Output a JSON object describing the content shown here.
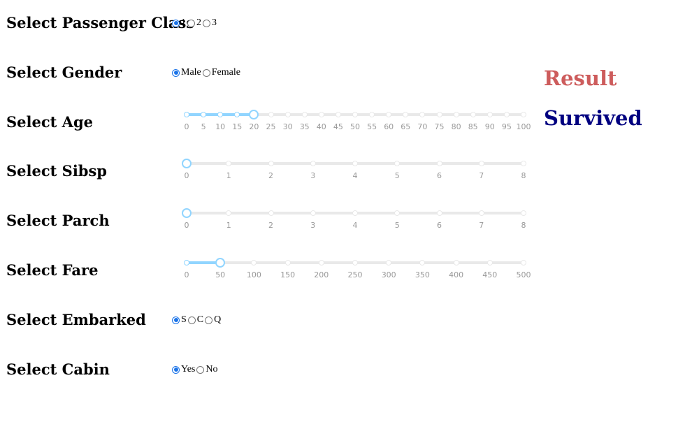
{
  "colors": {
    "accent": "#1a73e8",
    "slider_track": "#91d5ff",
    "slider_rail": "#e9e9e9",
    "result_title": "#cd5c5c",
    "result_value": "#000080"
  },
  "passenger_class": {
    "label": "Select Passenger Class",
    "options": [
      "1",
      "2",
      "3"
    ],
    "selected": "1"
  },
  "gender": {
    "label": "Select Gender",
    "options": [
      "Male",
      "Female"
    ],
    "selected": "Male"
  },
  "age": {
    "label": "Select Age",
    "marks": [
      "0",
      "5",
      "10",
      "15",
      "20",
      "25",
      "30",
      "35",
      "40",
      "45",
      "50",
      "55",
      "60",
      "65",
      "70",
      "75",
      "80",
      "85",
      "90",
      "95",
      "100"
    ],
    "min": 0,
    "max": 100,
    "value": 20
  },
  "sibsp": {
    "label": "Select Sibsp",
    "marks": [
      "0",
      "1",
      "2",
      "3",
      "4",
      "5",
      "6",
      "7",
      "8"
    ],
    "min": 0,
    "max": 8,
    "value": 0
  },
  "parch": {
    "label": "Select Parch",
    "marks": [
      "0",
      "1",
      "2",
      "3",
      "4",
      "5",
      "6",
      "7",
      "8"
    ],
    "min": 0,
    "max": 8,
    "value": 0
  },
  "fare": {
    "label": "Select Fare",
    "marks": [
      "0",
      "50",
      "100",
      "150",
      "200",
      "250",
      "300",
      "350",
      "400",
      "450",
      "500"
    ],
    "min": 0,
    "max": 500,
    "value": 50
  },
  "embarked": {
    "label": "Select Embarked",
    "options": [
      "S",
      "C",
      "Q"
    ],
    "selected": "S"
  },
  "cabin": {
    "label": "Select Cabin",
    "options": [
      "Yes",
      "No"
    ],
    "selected": "Yes"
  },
  "result": {
    "title": "Result",
    "value": "Survived"
  }
}
